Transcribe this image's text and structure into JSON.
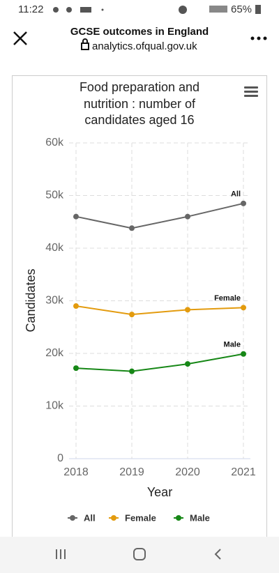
{
  "status_bar": {
    "time": "11:22",
    "battery": "65%"
  },
  "header": {
    "title": "GCSE outcomes in England",
    "url": "analytics.ofqual.gov.uk"
  },
  "chart_data": {
    "type": "line",
    "title": "Food preparation and nutrition : number of candidates aged 16",
    "x_label": "Year",
    "y_label": "Candidates",
    "categories": [
      "2018",
      "2019",
      "2020",
      "2021"
    ],
    "series": [
      {
        "name": "All",
        "color": "#666666",
        "values": [
          46000,
          43800,
          46000,
          48500
        ]
      },
      {
        "name": "Female",
        "color": "#e39b0e",
        "values": [
          29000,
          27400,
          28300,
          28700
        ]
      },
      {
        "name": "Male",
        "color": "#168716",
        "values": [
          17200,
          16600,
          18000,
          19900
        ]
      }
    ],
    "ylim": [
      0,
      60000
    ],
    "yticks": [
      0,
      {
        "value": 10000,
        "label": "10k"
      },
      {
        "value": 20000,
        "label": "20k"
      },
      {
        "value": 30000,
        "label": "30k"
      },
      {
        "value": 40000,
        "label": "40k"
      },
      {
        "value": 50000,
        "label": "50k"
      },
      {
        "value": 60000,
        "label": "60k"
      }
    ],
    "grid": true
  }
}
